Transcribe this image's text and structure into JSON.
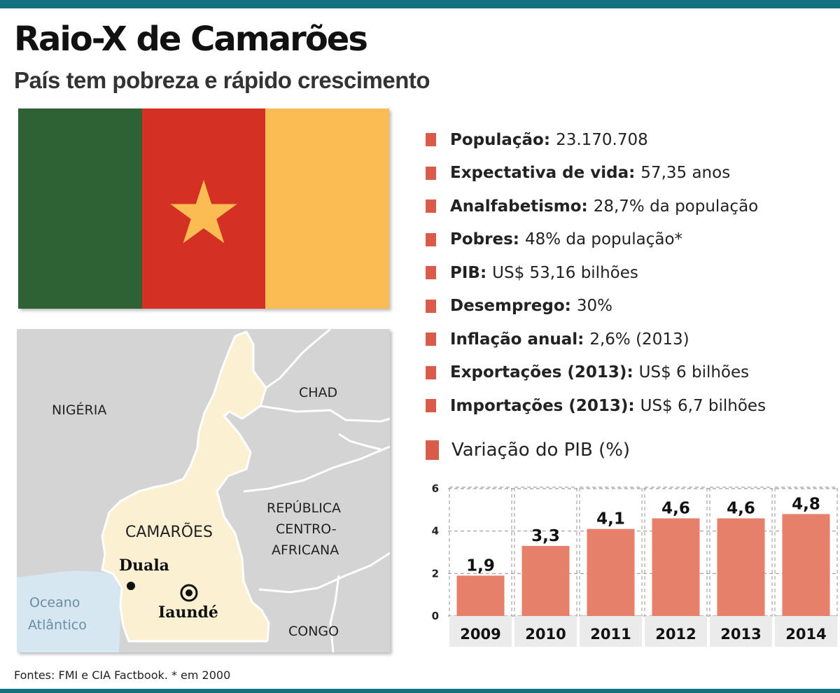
{
  "header": {
    "title": "Raio-X de Camarões",
    "subtitle": "País tem pobreza e rápido crescimento"
  },
  "flag": {
    "colors": [
      "#2e6133",
      "#d43124",
      "#fbbd53"
    ],
    "star_color": "#fbbd53",
    "icon": "star-icon"
  },
  "map": {
    "country_label": "CAMARÕES",
    "neighbors": {
      "nigeria": "NIGÉRIA",
      "chad": "CHAD",
      "car_line1": "REPÚBLICA",
      "car_line2": "CENTRO-",
      "car_line3": "AFRICANA",
      "congo": "CONGO"
    },
    "ocean_line1": "Oceano",
    "ocean_line2": "Atlântico",
    "cities": {
      "douala": "Duala",
      "yaounde": "Iaundé"
    },
    "colors": {
      "land": "#d4d4d4",
      "cameroon": "#fbf0d2",
      "ocean": "#d6e7f2",
      "border": "#ffffff"
    },
    "icons": {
      "city": "city-dot-icon",
      "capital": "capital-icon"
    }
  },
  "facts": [
    {
      "label": "População:",
      "value": "23.170.708"
    },
    {
      "label": "Expectativa de vida:",
      "value": "57,35 anos"
    },
    {
      "label": "Analfabetismo:",
      "value": "28,7% da população"
    },
    {
      "label": "Pobres:",
      "value": "48% da população*"
    },
    {
      "label": "PIB:",
      "value": "US$ 53,16 bilhões"
    },
    {
      "label": "Desemprego:",
      "value": "30%"
    },
    {
      "label": "Inflação anual:",
      "value": "2,6% (2013)"
    },
    {
      "label": "Exportações (2013):",
      "value": "US$ 6 bilhões"
    },
    {
      "label": "Importações (2013):",
      "value": "US$ 6,7 bilhões"
    }
  ],
  "accent_color": "#d95c4a",
  "chart_heading": "Variação do PIB (%)",
  "chart_data": {
    "type": "bar",
    "title": "Variação do PIB (%)",
    "categories": [
      "2009",
      "2010",
      "2011",
      "2012",
      "2013",
      "2014"
    ],
    "values": [
      1.9,
      3.3,
      4.1,
      4.6,
      4.6,
      4.8
    ],
    "value_labels": [
      "1,9",
      "3,3",
      "4,1",
      "4,6",
      "4,6",
      "4,8"
    ],
    "yticks": [
      "0",
      "2",
      "4",
      "6"
    ],
    "ylim": [
      0,
      6
    ],
    "grid": true,
    "bar_color": "#e6806a",
    "panel_color": "#ebebeb",
    "xlabel": "",
    "ylabel": ""
  },
  "footer": {
    "source": "Fontes: FMI e CIA Factbook. * em 2000"
  }
}
